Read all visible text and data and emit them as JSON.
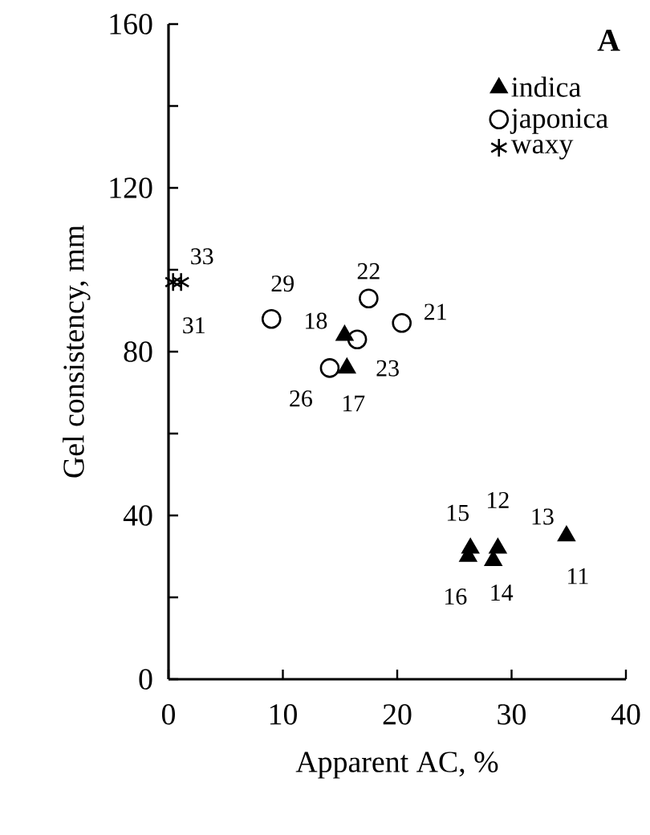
{
  "chart_data": {
    "type": "scatter",
    "xlabel": "Apparent AC, %",
    "ylabel": "Gel consistency, mm",
    "xlim": [
      0,
      40
    ],
    "xticks": [
      0,
      10,
      20,
      30,
      40
    ],
    "ylim": [
      0,
      160
    ],
    "yticks": [
      0,
      {
        "value": 20,
        "label": null
      },
      40,
      {
        "value": 60,
        "label": null
      },
      80,
      {
        "value": 100,
        "label": null
      },
      120,
      {
        "value": 140,
        "label": null
      },
      160
    ],
    "grid": false,
    "legend": "top right",
    "series": [
      {
        "name": "indica",
        "color": "#000000",
        "marker": "triangle",
        "x": [
          15.4,
          15.6,
          26.4,
          26.2,
          28.8,
          28.4,
          34.8
        ],
        "values": [
          84,
          76,
          32,
          30,
          32,
          29,
          35
        ]
      },
      {
        "name": "japonica",
        "color": "#000000",
        "marker": "circle",
        "x": [
          9.0,
          17.5,
          20.4,
          16.5,
          14.1
        ],
        "values": [
          88,
          93,
          87,
          83,
          76
        ]
      },
      {
        "name": "waxy",
        "color": "#000000",
        "marker": "cross",
        "x": [
          1.1,
          0.4
        ],
        "values": [
          97,
          97
        ]
      }
    ],
    "annotations": [
      "A",
      {
        "text": "18",
        "x": 15.4,
        "y": 84
      },
      {
        "text": "17",
        "x": 15.6,
        "y": 76
      },
      {
        "text": "15",
        "x": 26.4,
        "y": 32
      },
      {
        "text": "16",
        "x": 26.2,
        "y": 30
      },
      {
        "text": "12",
        "x": 28.8,
        "y": 32
      },
      {
        "text": "14",
        "x": 28.4,
        "y": 29
      },
      {
        "text": "13",
        "x": 34.8,
        "y": 35
      },
      {
        "text": "11",
        "x": 34.8,
        "y": 35
      },
      {
        "text": "29",
        "x": 9.0,
        "y": 88
      },
      {
        "text": "22",
        "x": 17.5,
        "y": 93
      },
      {
        "text": "21",
        "x": 20.4,
        "y": 87
      },
      {
        "text": "23",
        "x": 16.5,
        "y": 83
      },
      {
        "text": "26",
        "x": 14.1,
        "y": 76
      },
      {
        "text": "33",
        "x": 1.1,
        "y": 97
      },
      {
        "text": "31",
        "x": 0.4,
        "y": 97
      }
    ]
  }
}
